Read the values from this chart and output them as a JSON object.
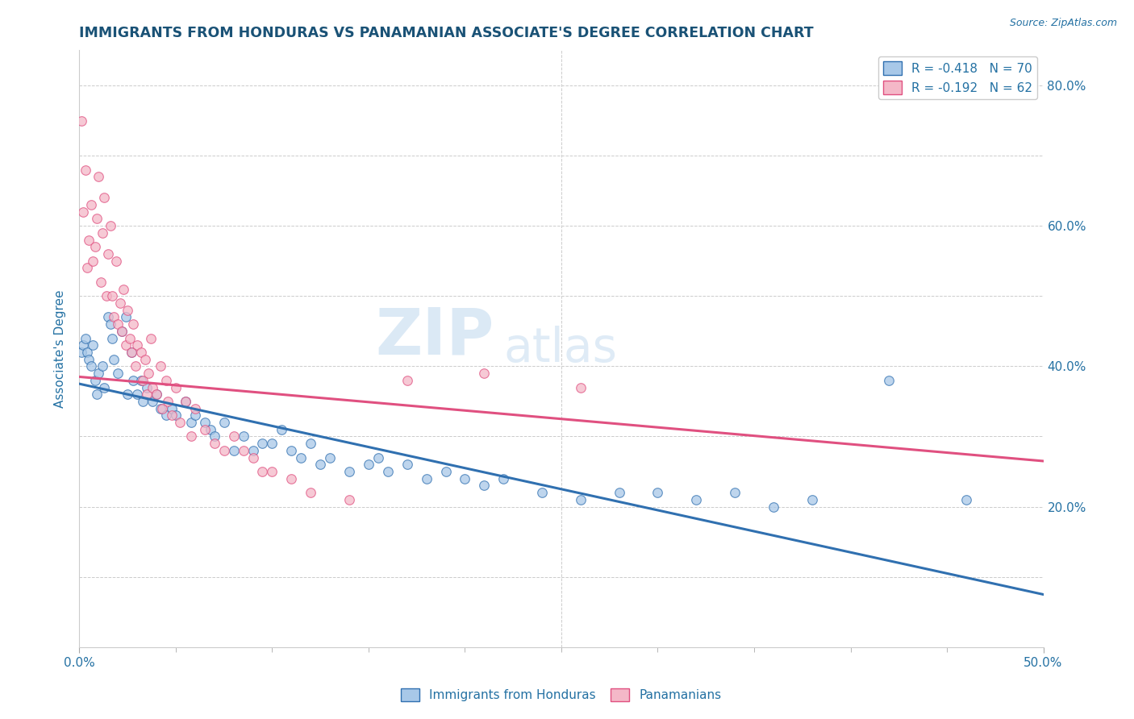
{
  "title": "IMMIGRANTS FROM HONDURAS VS PANAMANIAN ASSOCIATE'S DEGREE CORRELATION CHART",
  "source_text": "Source: ZipAtlas.com",
  "ylabel": "Associate's Degree",
  "xmin": 0.0,
  "xmax": 0.5,
  "ymin": 0.0,
  "ymax": 0.85,
  "yticks": [
    0.0,
    0.2,
    0.4,
    0.6,
    0.8
  ],
  "ytick_labels": [
    "",
    "20.0%",
    "40.0%",
    "60.0%",
    "80.0%"
  ],
  "legend_blue_label": "R = -0.418   N = 70",
  "legend_pink_label": "R = -0.192   N = 62",
  "bottom_legend_blue": "Immigrants from Honduras",
  "bottom_legend_pink": "Panamanians",
  "watermark_zip": "ZIP",
  "watermark_atlas": "atlas",
  "blue_color": "#a8c8e8",
  "pink_color": "#f4b8c8",
  "line_blue_color": "#3070b0",
  "line_pink_color": "#e05080",
  "title_color": "#1a5276",
  "axis_color": "#2471a3",
  "grid_color": "#cccccc",
  "blue_scatter": [
    [
      0.001,
      0.42
    ],
    [
      0.002,
      0.43
    ],
    [
      0.003,
      0.44
    ],
    [
      0.004,
      0.42
    ],
    [
      0.005,
      0.41
    ],
    [
      0.006,
      0.4
    ],
    [
      0.007,
      0.43
    ],
    [
      0.008,
      0.38
    ],
    [
      0.009,
      0.36
    ],
    [
      0.01,
      0.39
    ],
    [
      0.012,
      0.4
    ],
    [
      0.013,
      0.37
    ],
    [
      0.015,
      0.47
    ],
    [
      0.016,
      0.46
    ],
    [
      0.017,
      0.44
    ],
    [
      0.018,
      0.41
    ],
    [
      0.02,
      0.39
    ],
    [
      0.022,
      0.45
    ],
    [
      0.024,
      0.47
    ],
    [
      0.025,
      0.36
    ],
    [
      0.027,
      0.42
    ],
    [
      0.028,
      0.38
    ],
    [
      0.03,
      0.36
    ],
    [
      0.032,
      0.38
    ],
    [
      0.033,
      0.35
    ],
    [
      0.035,
      0.37
    ],
    [
      0.038,
      0.35
    ],
    [
      0.04,
      0.36
    ],
    [
      0.042,
      0.34
    ],
    [
      0.045,
      0.33
    ],
    [
      0.048,
      0.34
    ],
    [
      0.05,
      0.33
    ],
    [
      0.055,
      0.35
    ],
    [
      0.058,
      0.32
    ],
    [
      0.06,
      0.33
    ],
    [
      0.065,
      0.32
    ],
    [
      0.068,
      0.31
    ],
    [
      0.07,
      0.3
    ],
    [
      0.075,
      0.32
    ],
    [
      0.08,
      0.28
    ],
    [
      0.085,
      0.3
    ],
    [
      0.09,
      0.28
    ],
    [
      0.095,
      0.29
    ],
    [
      0.1,
      0.29
    ],
    [
      0.105,
      0.31
    ],
    [
      0.11,
      0.28
    ],
    [
      0.115,
      0.27
    ],
    [
      0.12,
      0.29
    ],
    [
      0.125,
      0.26
    ],
    [
      0.13,
      0.27
    ],
    [
      0.14,
      0.25
    ],
    [
      0.15,
      0.26
    ],
    [
      0.155,
      0.27
    ],
    [
      0.16,
      0.25
    ],
    [
      0.17,
      0.26
    ],
    [
      0.18,
      0.24
    ],
    [
      0.19,
      0.25
    ],
    [
      0.2,
      0.24
    ],
    [
      0.21,
      0.23
    ],
    [
      0.22,
      0.24
    ],
    [
      0.24,
      0.22
    ],
    [
      0.26,
      0.21
    ],
    [
      0.28,
      0.22
    ],
    [
      0.3,
      0.22
    ],
    [
      0.32,
      0.21
    ],
    [
      0.34,
      0.22
    ],
    [
      0.36,
      0.2
    ],
    [
      0.38,
      0.21
    ],
    [
      0.42,
      0.38
    ],
    [
      0.46,
      0.21
    ]
  ],
  "pink_scatter": [
    [
      0.001,
      0.75
    ],
    [
      0.002,
      0.62
    ],
    [
      0.003,
      0.68
    ],
    [
      0.004,
      0.54
    ],
    [
      0.005,
      0.58
    ],
    [
      0.006,
      0.63
    ],
    [
      0.007,
      0.55
    ],
    [
      0.008,
      0.57
    ],
    [
      0.009,
      0.61
    ],
    [
      0.01,
      0.67
    ],
    [
      0.011,
      0.52
    ],
    [
      0.012,
      0.59
    ],
    [
      0.013,
      0.64
    ],
    [
      0.014,
      0.5
    ],
    [
      0.015,
      0.56
    ],
    [
      0.016,
      0.6
    ],
    [
      0.017,
      0.5
    ],
    [
      0.018,
      0.47
    ],
    [
      0.019,
      0.55
    ],
    [
      0.02,
      0.46
    ],
    [
      0.021,
      0.49
    ],
    [
      0.022,
      0.45
    ],
    [
      0.023,
      0.51
    ],
    [
      0.024,
      0.43
    ],
    [
      0.025,
      0.48
    ],
    [
      0.026,
      0.44
    ],
    [
      0.027,
      0.42
    ],
    [
      0.028,
      0.46
    ],
    [
      0.029,
      0.4
    ],
    [
      0.03,
      0.43
    ],
    [
      0.032,
      0.42
    ],
    [
      0.033,
      0.38
    ],
    [
      0.034,
      0.41
    ],
    [
      0.035,
      0.36
    ],
    [
      0.036,
      0.39
    ],
    [
      0.037,
      0.44
    ],
    [
      0.038,
      0.37
    ],
    [
      0.04,
      0.36
    ],
    [
      0.042,
      0.4
    ],
    [
      0.043,
      0.34
    ],
    [
      0.045,
      0.38
    ],
    [
      0.046,
      0.35
    ],
    [
      0.048,
      0.33
    ],
    [
      0.05,
      0.37
    ],
    [
      0.052,
      0.32
    ],
    [
      0.055,
      0.35
    ],
    [
      0.058,
      0.3
    ],
    [
      0.06,
      0.34
    ],
    [
      0.065,
      0.31
    ],
    [
      0.07,
      0.29
    ],
    [
      0.075,
      0.28
    ],
    [
      0.08,
      0.3
    ],
    [
      0.085,
      0.28
    ],
    [
      0.09,
      0.27
    ],
    [
      0.095,
      0.25
    ],
    [
      0.1,
      0.25
    ],
    [
      0.11,
      0.24
    ],
    [
      0.12,
      0.22
    ],
    [
      0.14,
      0.21
    ],
    [
      0.17,
      0.38
    ],
    [
      0.21,
      0.39
    ],
    [
      0.26,
      0.37
    ]
  ],
  "blue_line": [
    [
      0.0,
      0.375
    ],
    [
      0.5,
      0.075
    ]
  ],
  "pink_line": [
    [
      0.0,
      0.385
    ],
    [
      0.5,
      0.265
    ]
  ]
}
